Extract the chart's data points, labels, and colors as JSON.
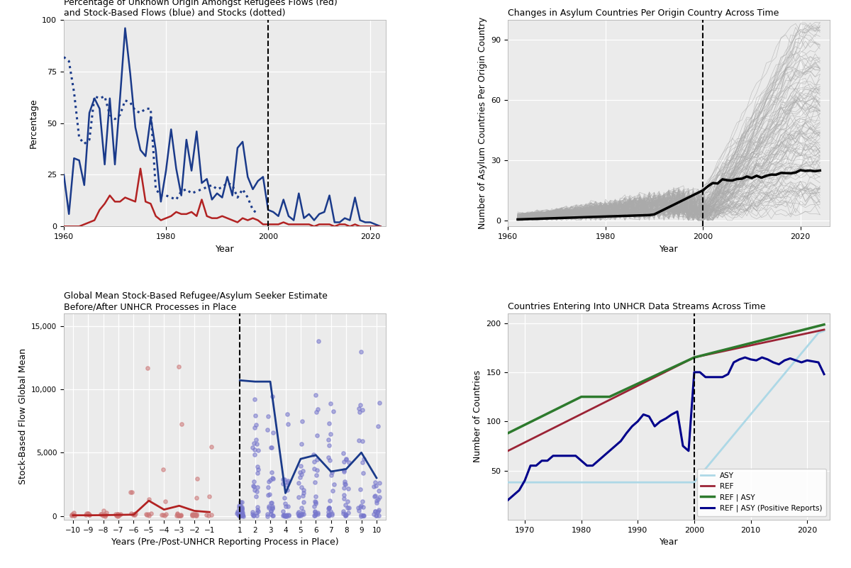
{
  "fig_width": 12.0,
  "fig_height": 8.01,
  "bg_color": "#ffffff",
  "panel_bg": "#ebebeb",
  "p1_title": "Percentage of Unknown Origin Amongst Refugees Flows (red)\nand Stock-Based Flows (blue) and Stocks (dotted)",
  "p1_ylabel": "Percentage",
  "p1_xlabel": "Year",
  "p1_xlim": [
    1960,
    2023
  ],
  "p1_ylim": [
    0,
    100
  ],
  "p1_yticks": [
    0,
    25,
    50,
    75,
    100
  ],
  "p1_xticks": [
    1960,
    1980,
    2000,
    2020
  ],
  "p1_vline": 2000,
  "p2_title": "Changes in Asylum Countries Per Origin Country Across Time",
  "p2_ylabel": "Number of Asylum Countries Per Origin Country",
  "p2_xlabel": "Year",
  "p2_xlim": [
    1960,
    2026
  ],
  "p2_ylim": [
    -3,
    100
  ],
  "p2_yticks": [
    0,
    30,
    60,
    90
  ],
  "p2_xticks": [
    1960,
    1980,
    2000,
    2020
  ],
  "p2_vline": 2000,
  "p3_title": "Global Mean Stock-Based Refugee/Asylum Seeker Estimate\nBefore/After UNHCR Processes in Place",
  "p3_ylabel": "Stock-Based Flow Global Mean",
  "p3_xlabel": "Years (Pre-/Post-UNHCR Reporting Process in Place)",
  "p3_xlim": [
    -10.6,
    10.6
  ],
  "p3_ylim": [
    -300,
    16000
  ],
  "p3_yticks": [
    0,
    5000,
    10000,
    15000
  ],
  "p3_xticks": [
    -10,
    -9,
    -8,
    -7,
    -6,
    -5,
    -4,
    -3,
    -2,
    -1,
    1,
    2,
    3,
    4,
    5,
    6,
    7,
    8,
    9,
    10
  ],
  "p3_vline": 1,
  "p4_title": "Countries Entering Into UNHCR Data Streams Across Time",
  "p4_ylabel": "Number of Countries",
  "p4_xlabel": "Year",
  "p4_xlim": [
    1967,
    2024
  ],
  "p4_ylim": [
    0,
    210
  ],
  "p4_yticks": [
    50,
    100,
    150,
    200
  ],
  "p4_xticks": [
    1970,
    1980,
    1990,
    2000,
    2010,
    2020
  ],
  "p4_vline": 2000,
  "blue_color": "#1a3a8a",
  "red_color": "#b22222",
  "gray_color": "#aaaaaa",
  "dark_blue": "#00008b",
  "light_blue": "#add8e6",
  "green_color": "#228b22"
}
